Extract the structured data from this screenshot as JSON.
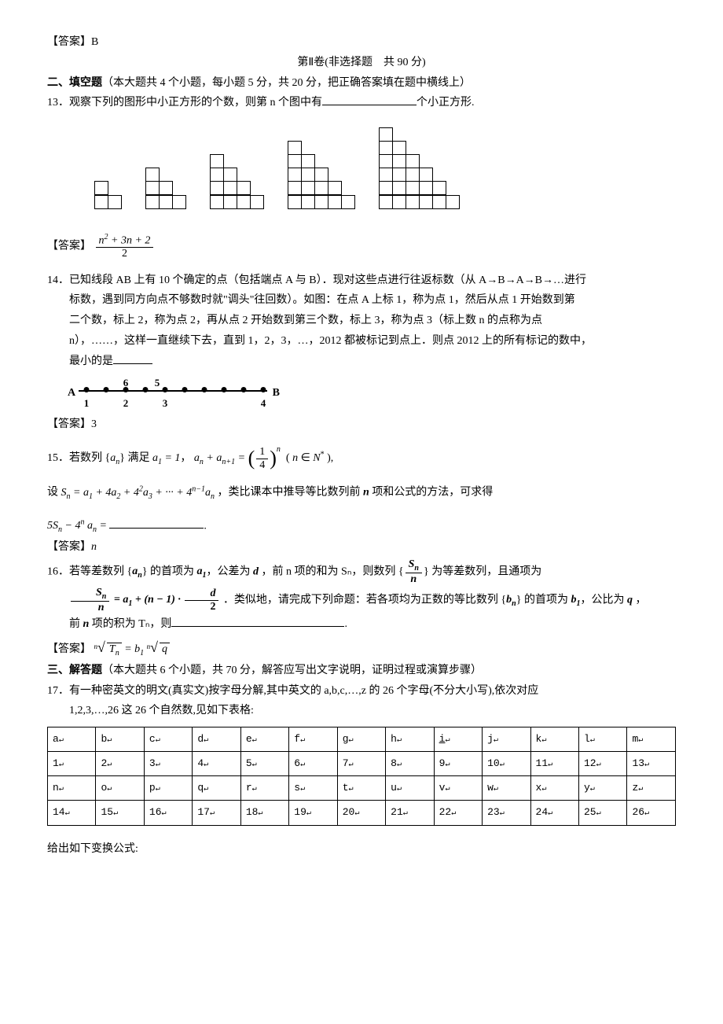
{
  "answer12": "【答案】B",
  "part2_header": "第Ⅱ卷(非选择题　共 90 分)",
  "section2_title": "二、填空题",
  "section2_note": "（本大题共 4 个小题，每小题 5 分，共 20 分，把正确答案填在题中横线上）",
  "q13": "13．观察下列的图形中小正方形的个数，则第 n 个图中有",
  "q13_tail": "个小正方形.",
  "staircases": [
    [
      2,
      1
    ],
    [
      3,
      2,
      1
    ],
    [
      4,
      3,
      2,
      1
    ],
    [
      5,
      4,
      3,
      2,
      1
    ],
    [
      6,
      5,
      4,
      3,
      2,
      1
    ]
  ],
  "ans13_label": "【答案】",
  "ans13_num": "n² + 3n + 2",
  "ans13_den": "2",
  "q14_l1": "14．已知线段 AB 上有 10 个确定的点（包括端点 A 与 B）．现对这些点进行往返标数（从 A→B→A→B→…进行",
  "q14_l2": "标数，遇到同方向点不够数时就\"调头\"往回数）。如图：在点 A 上标 1，称为点 1，然后从点 1 开始数到第",
  "q14_l3": "二个数，标上 2，称为点 2，再从点 2 开始数到第三个数，标上 3，称为点 3（标上数 n 的点称为点",
  "q14_l4": "n），……，这样一直继续下去，直到 1，2，3，…，2012 都被标记到点上．则点 2012 上的所有标记的数中，",
  "q14_l5": "最小的是",
  "numline": {
    "A": "A",
    "B": "B",
    "dots_x": [
      20,
      45,
      70,
      95,
      120,
      145,
      170,
      195,
      220,
      245
    ],
    "below": {
      "1": 20,
      "2": 70,
      "3": 120,
      "4": 245
    },
    "above": {
      "6": 70,
      "5": 110
    }
  },
  "ans14": "【答案】3",
  "q15_a": "15．若数列 {",
  "an": "aₙ",
  "q15_b": "} 满足 ",
  "a1eq": "a₁ = 1",
  "q15_c": "， ",
  "rec_l": "aₙ + aₙ₊₁ = ",
  "q15_d": " ( n ∈ N* ),",
  "q15_l2a": "设 ",
  "Sn_expand": "Sₙ = a₁ + 4a₂ + 4²a₃ + ··· + 4ⁿ⁻¹aₙ",
  "q15_l2b": "，类比课本中推导等比数列前 ",
  "nital": "n",
  "q15_l2c": " 项和公式的方法，可求得",
  "q15_l3": "5Sₙ − 4ⁿ aₙ = ",
  "ans15_label": "【答案】",
  "ans15_val": "n",
  "q16_a": "16．若等差数列 {",
  "q16_b": "} 的首项为 ",
  "a1": "a₁",
  "q16_c": "，公差为 ",
  "d": "d",
  "q16_d": " ，前 n 项的和为 Sₙ，则数列 {",
  "q16_e": "} 为等差数列，且通项为",
  "q16_line2a": "．类似地，请完成下列命题：若各项均为正数的等比数列 {",
  "bn": "bₙ",
  "q16_line2b": "} 的首项为 ",
  "b1": "b₁",
  "q16_line2c": "，公比为 ",
  "q": "q",
  "q16_line2d": " ，",
  "q16_line3": "前 ",
  "q16_line3b": " 项的积为 Tₙ，则",
  "ans16_label": "【答案】",
  "section3_title": "三、解答题",
  "section3_note": "（本大题共 6 个小题，共 70 分，解答应写出文字说明，证明过程或演算步骤）",
  "q17_l1": "17．有一种密英文的明文(真实文)按字母分解,其中英文的 a,b,c,…,z 的 26 个字母(不分大小写),依次对应",
  "q17_l2": "1,2,3,…,26 这 26 个自然数,见如下表格:",
  "table": {
    "row1": [
      "a",
      "b",
      "c",
      "d",
      "e",
      "f",
      "g",
      "h",
      "i",
      "j",
      "k",
      "l",
      "m"
    ],
    "row2": [
      "1",
      "2",
      "3",
      "4",
      "5",
      "6",
      "7",
      "8",
      "9",
      "10",
      "11",
      "12",
      "13"
    ],
    "row3": [
      "n",
      "o",
      "p",
      "q",
      "r",
      "s",
      "t",
      "u",
      "v",
      "w",
      "x",
      "y",
      "z"
    ],
    "row4": [
      "14",
      "15",
      "16",
      "17",
      "18",
      "19",
      "20",
      "21",
      "22",
      "23",
      "24",
      "25",
      "26"
    ]
  },
  "q17_tail": "给出如下变换公式:"
}
